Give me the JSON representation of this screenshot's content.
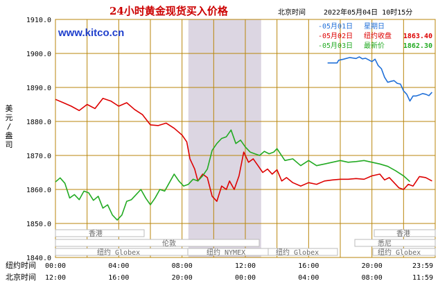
{
  "header": {
    "title": "24小时黄金现货买入价格",
    "site": "www.kitco.cn",
    "timezone_label": "北京时间",
    "datetime": "2022年05月04日 10时15分"
  },
  "legend": [
    {
      "date": "05月01日",
      "label": "星期日",
      "value": "",
      "color": "#1f6fd8"
    },
    {
      "date": "05月02日",
      "label": "纽约收盘",
      "value": "1863.40",
      "color": "#dd0000"
    },
    {
      "date": "05月03日",
      "label": "最新价",
      "value": "1862.30",
      "color": "#22aa22"
    }
  ],
  "colors": {
    "grid": "#b8860b",
    "nymex_shade": "#dcd6e2",
    "series_0501": "#1f6fd8",
    "series_0502": "#dd0000",
    "series_0503": "#22aa22"
  },
  "yaxis_label": "美元/盎司",
  "rows": [
    {
      "label": "纽约时间",
      "ticks": [
        "00:00",
        "04:00",
        "08:00",
        "12:00",
        "16:00",
        "20:00",
        "23:59"
      ]
    },
    {
      "label": "北京时间",
      "ticks": [
        "12:00",
        "16:00",
        "20:00",
        "00:00",
        "04:00",
        "08:00",
        "11:59"
      ]
    }
  ],
  "sessions": {
    "hongkong": "香港",
    "globex": "纽约 Globex",
    "london": "伦敦",
    "nymex": "纽约 NYMEX",
    "sydney": "悉尼"
  },
  "chart_data": {
    "type": "line",
    "ylim": [
      1840,
      1910
    ],
    "yticks": [
      1840,
      1850,
      1860,
      1870,
      1880,
      1890,
      1900,
      1910
    ],
    "xlim": [
      0,
      24
    ],
    "xticks_hours": [
      0,
      4,
      8,
      12,
      16,
      20,
      23.98
    ],
    "grid": true,
    "shaded_band_hours": [
      8.4,
      13.0
    ],
    "series": [
      {
        "name": "05月01日",
        "key": "series_0501",
        "x": [
          17.2,
          17.8,
          17.9,
          18.2,
          18.6,
          19.0,
          19.2,
          19.4,
          19.6,
          19.8,
          20.0,
          20.2,
          20.4,
          20.6,
          20.8,
          21.0,
          21.2,
          21.4,
          21.6,
          21.8,
          22.0,
          22.2,
          22.4,
          22.6,
          22.8,
          23.0,
          23.2,
          23.4,
          23.6,
          23.8
        ],
        "y": [
          1897.2,
          1897.2,
          1898.0,
          1898.3,
          1898.8,
          1898.5,
          1899.0,
          1898.4,
          1898.6,
          1898.1,
          1897.6,
          1898.3,
          1896.4,
          1895.5,
          1893.0,
          1891.5,
          1891.8,
          1892.0,
          1891.2,
          1891.0,
          1889.0,
          1888.0,
          1886.0,
          1887.5,
          1887.5,
          1887.8,
          1888.2,
          1888.0,
          1887.6,
          1888.6
        ]
      },
      {
        "name": "05月02日",
        "key": "series_0502",
        "x": [
          0,
          0.5,
          1.0,
          1.5,
          2.0,
          2.5,
          3.0,
          3.5,
          4.0,
          4.5,
          5.0,
          5.5,
          6.0,
          6.5,
          7.0,
          7.5,
          8.0,
          8.3,
          8.5,
          8.8,
          9.0,
          9.3,
          9.6,
          9.9,
          10.2,
          10.5,
          10.8,
          11.0,
          11.3,
          11.6,
          11.9,
          12.2,
          12.5,
          12.8,
          13.1,
          13.4,
          13.7,
          14.0,
          14.3,
          14.6,
          15.0,
          15.5,
          16.0,
          16.5,
          17.0,
          17.5,
          18.0,
          18.5,
          19.0,
          19.5,
          20.0,
          20.5,
          20.8,
          21.1,
          21.4,
          21.7,
          22.0,
          22.3,
          22.6,
          23.0,
          23.4,
          23.8
        ],
        "y": [
          1886.5,
          1885.5,
          1884.5,
          1883.2,
          1885.0,
          1883.8,
          1886.8,
          1886.0,
          1884.5,
          1885.5,
          1883.5,
          1882.0,
          1879.0,
          1878.8,
          1879.5,
          1878.0,
          1876.0,
          1874.0,
          1869.0,
          1866.0,
          1862.5,
          1864.5,
          1863.5,
          1858.0,
          1856.5,
          1861.0,
          1860.0,
          1862.5,
          1860.0,
          1864.0,
          1871.0,
          1868.0,
          1869.0,
          1867.0,
          1865.0,
          1866.0,
          1864.5,
          1865.8,
          1862.5,
          1863.5,
          1862.0,
          1861.0,
          1862.0,
          1861.5,
          1862.5,
          1862.8,
          1863.0,
          1863.0,
          1863.2,
          1863.0,
          1864.0,
          1864.5,
          1862.8,
          1863.5,
          1862.0,
          1860.5,
          1860.0,
          1861.5,
          1861.0,
          1863.8,
          1863.5,
          1862.5
        ]
      },
      {
        "name": "05月03日",
        "key": "series_0503",
        "x": [
          0,
          0.3,
          0.6,
          0.9,
          1.2,
          1.5,
          1.8,
          2.1,
          2.4,
          2.7,
          3.0,
          3.3,
          3.6,
          3.9,
          4.2,
          4.5,
          4.8,
          5.1,
          5.4,
          5.7,
          6.0,
          6.3,
          6.6,
          6.9,
          7.2,
          7.5,
          7.8,
          8.1,
          8.4,
          8.7,
          9.0,
          9.3,
          9.6,
          9.9,
          10.2,
          10.5,
          10.8,
          11.1,
          11.4,
          11.7,
          12.0,
          12.3,
          12.6,
          12.9,
          13.2,
          13.5,
          13.8,
          14.0,
          14.5,
          15.0,
          15.5,
          16.0,
          16.5,
          17.0,
          17.5,
          18.0,
          18.5,
          19.0,
          19.5,
          20.0,
          20.5,
          21.0,
          21.5,
          22.0,
          22.4
        ],
        "y": [
          1862.2,
          1863.4,
          1861.8,
          1857.5,
          1858.5,
          1857.0,
          1859.5,
          1859.0,
          1856.8,
          1858.0,
          1854.5,
          1855.5,
          1852.5,
          1851.0,
          1852.5,
          1856.5,
          1857.0,
          1858.5,
          1860.0,
          1857.5,
          1855.5,
          1857.5,
          1860.0,
          1859.5,
          1862.0,
          1864.5,
          1862.5,
          1861.0,
          1861.5,
          1863.0,
          1862.5,
          1864.0,
          1866.0,
          1871.5,
          1873.5,
          1875.0,
          1875.5,
          1877.5,
          1873.5,
          1874.5,
          1872.5,
          1871.0,
          1870.5,
          1870.0,
          1871.2,
          1870.5,
          1871.0,
          1872.0,
          1868.5,
          1869.0,
          1867.0,
          1868.5,
          1867.0,
          1867.5,
          1868.0,
          1868.5,
          1868.0,
          1868.2,
          1868.5,
          1868.0,
          1867.5,
          1866.8,
          1865.5,
          1864.0,
          1862.3
        ]
      }
    ]
  }
}
